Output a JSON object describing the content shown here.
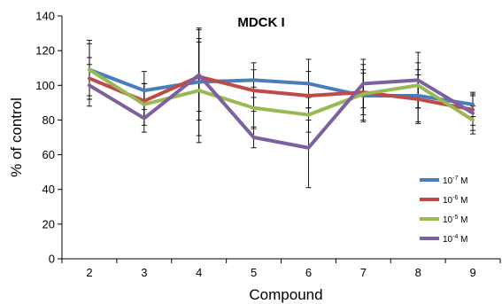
{
  "chart_data": {
    "type": "line",
    "title": "MDCK I",
    "xlabel": "Compound",
    "ylabel": "% of control",
    "x": [
      2,
      3,
      4,
      5,
      6,
      7,
      8,
      9
    ],
    "ylim": [
      0,
      140
    ],
    "yticks": [
      0,
      20,
      40,
      60,
      80,
      100,
      120,
      140
    ],
    "grid": false,
    "legend_position": "right",
    "series": [
      {
        "name": "10-7 M",
        "legend_base": "10",
        "legend_exp": "-7",
        "legend_unit": " M",
        "color": "#4a7ebb",
        "values": [
          109,
          97,
          102,
          103,
          101,
          94,
          94,
          89
        ],
        "errors": [
          17,
          11,
          31,
          10,
          14,
          15,
          15,
          7
        ]
      },
      {
        "name": "10-6 M",
        "legend_base": "10",
        "legend_exp": "-6",
        "legend_unit": " M",
        "color": "#be4b48",
        "values": [
          104,
          91,
          105,
          97,
          94,
          96,
          92,
          86
        ],
        "errors": [
          12,
          10,
          20,
          12,
          14,
          16,
          14,
          9
        ]
      },
      {
        "name": "10-5 M",
        "legend_base": "10",
        "legend_exp": "-5",
        "legend_unit": " M",
        "color": "#98b954",
        "values": [
          109,
          89,
          97,
          87,
          83,
          95,
          100,
          80
        ],
        "errors": [
          15,
          12,
          30,
          12,
          10,
          12,
          13,
          8
        ]
      },
      {
        "name": "10-4 M",
        "legend_base": "10",
        "legend_exp": "-4",
        "legend_unit": " M",
        "color": "#7d60a0",
        "values": [
          100,
          81,
          106,
          70,
          64,
          101,
          103,
          84
        ],
        "errors": [
          12,
          8,
          26,
          6,
          23,
          14,
          16,
          10
        ]
      }
    ]
  }
}
